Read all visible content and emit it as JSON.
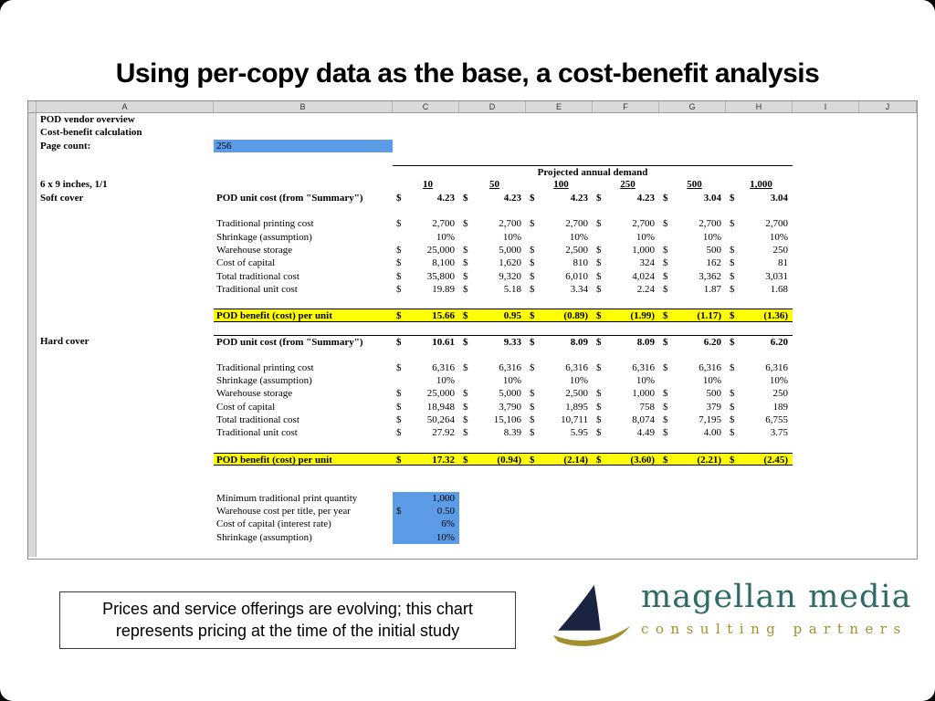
{
  "slide": {
    "title": "Using per-copy data as the base, a cost-benefit analysis",
    "note": "Prices and service offerings are evolving; this chart represents pricing at the time of the initial study"
  },
  "logo": {
    "name": "magellan media",
    "subtitle": "consulting partners",
    "colors": {
      "navy": "#1a2440",
      "gold": "#a38e2d",
      "teal": "#2e6b66"
    }
  },
  "spreadsheet": {
    "colors": {
      "input_blue": "#5c9ce6",
      "highlight_yellow": "#ffff00",
      "header_gray": "#d9d9d9"
    },
    "column_letters": [
      "A",
      "B",
      "C",
      "D",
      "E",
      "F",
      "G",
      "H",
      "I",
      "J"
    ],
    "rows": [
      {
        "type": "label",
        "a": "POD vendor overview",
        "aBold": true
      },
      {
        "type": "label",
        "a": "Cost-benefit calculation",
        "aBold": true
      },
      {
        "type": "label",
        "a": "Page count:",
        "aBold": true,
        "b": "256",
        "bBg": "blue"
      },
      {
        "type": "blank"
      },
      {
        "type": "span",
        "text": "Projected annual demand",
        "ruleTop": true
      },
      {
        "type": "headers",
        "a": "6 x 9 inches, 1/1",
        "aBold": true,
        "vals": [
          "10",
          "50",
          "100",
          "250",
          "500",
          "1,000"
        ]
      },
      {
        "type": "data",
        "a": "Soft cover",
        "aBold": true,
        "b": "POD unit cost (from \"Summary\")",
        "bBold": true,
        "fmt": "usd",
        "vBold": true,
        "vals": [
          "4.23",
          "4.23",
          "4.23",
          "4.23",
          "3.04",
          "3.04"
        ]
      },
      {
        "type": "blank"
      },
      {
        "type": "data",
        "b": "Traditional printing cost",
        "fmt": "usd",
        "vals": [
          "2,700",
          "2,700",
          "2,700",
          "2,700",
          "2,700",
          "2,700"
        ]
      },
      {
        "type": "data",
        "b": "Shrinkage (assumption)",
        "fmt": "pct",
        "vals": [
          "10%",
          "10%",
          "10%",
          "10%",
          "10%",
          "10%"
        ]
      },
      {
        "type": "data",
        "b": "Warehouse storage",
        "fmt": "usd",
        "vals": [
          "25,000",
          "5,000",
          "2,500",
          "1,000",
          "500",
          "250"
        ]
      },
      {
        "type": "data",
        "b": "Cost of capital",
        "fmt": "usd",
        "vals": [
          "8,100",
          "1,620",
          "810",
          "324",
          "162",
          "81"
        ]
      },
      {
        "type": "data",
        "b": "Total traditional cost",
        "fmt": "usd",
        "vals": [
          "35,800",
          "9,320",
          "6,010",
          "4,024",
          "3,362",
          "3,031"
        ]
      },
      {
        "type": "data",
        "b": "Traditional unit cost",
        "fmt": "usd",
        "vals": [
          "19.89",
          "5.18",
          "3.34",
          "2.24",
          "1.87",
          "1.68"
        ]
      },
      {
        "type": "blank"
      },
      {
        "type": "data",
        "b": "POD benefit (cost) per unit",
        "bBold": true,
        "fmt": "usd",
        "vBold": true,
        "yellow": true,
        "vals": [
          "15.66",
          "0.95",
          "(0.89)",
          "(1.99)",
          "(1.17)",
          "(1.36)"
        ]
      },
      {
        "type": "blank"
      },
      {
        "type": "data",
        "a": "Hard cover",
        "aBold": true,
        "b": "POD unit cost (from \"Summary\")",
        "bBold": true,
        "fmt": "usd",
        "vBold": true,
        "ruleTop": true,
        "vals": [
          "10.61",
          "9.33",
          "8.09",
          "8.09",
          "6.20",
          "6.20"
        ]
      },
      {
        "type": "blank"
      },
      {
        "type": "data",
        "b": "Traditional printing cost",
        "fmt": "usd",
        "vals": [
          "6,316",
          "6,316",
          "6,316",
          "6,316",
          "6,316",
          "6,316"
        ]
      },
      {
        "type": "data",
        "b": "Shrinkage (assumption)",
        "fmt": "pct",
        "vals": [
          "10%",
          "10%",
          "10%",
          "10%",
          "10%",
          "10%"
        ]
      },
      {
        "type": "data",
        "b": "Warehouse storage",
        "fmt": "usd",
        "vals": [
          "25,000",
          "5,000",
          "2,500",
          "1,000",
          "500",
          "250"
        ]
      },
      {
        "type": "data",
        "b": "Cost of capital",
        "fmt": "usd",
        "vals": [
          "18,948",
          "3,790",
          "1,895",
          "758",
          "379",
          "189"
        ]
      },
      {
        "type": "data",
        "b": "Total traditional cost",
        "fmt": "usd",
        "vals": [
          "50,264",
          "15,106",
          "10,711",
          "8,074",
          "7,195",
          "6,755"
        ]
      },
      {
        "type": "data",
        "b": "Traditional unit cost",
        "fmt": "usd",
        "vals": [
          "27.92",
          "8.39",
          "5.95",
          "4.49",
          "4.00",
          "3.75"
        ]
      },
      {
        "type": "blank"
      },
      {
        "type": "data",
        "b": "POD benefit (cost) per unit",
        "bBold": true,
        "fmt": "usd",
        "vBold": true,
        "yellow": true,
        "vals": [
          "17.32",
          "(0.94)",
          "(2.14)",
          "(3.60)",
          "(2.21)",
          "(2.45)"
        ]
      },
      {
        "type": "blank"
      },
      {
        "type": "blank"
      },
      {
        "type": "assumption",
        "b": "Minimum traditional print quantity",
        "fmt": "plain",
        "val": "1,000"
      },
      {
        "type": "assumption",
        "b": "Warehouse cost per title, per year",
        "fmt": "usd",
        "val": "0.50"
      },
      {
        "type": "assumption",
        "b": "Cost of capital (interest rate)",
        "fmt": "plain",
        "val": "6%"
      },
      {
        "type": "assumption",
        "b": "Shrinkage (assumption)",
        "fmt": "plain",
        "val": "10%"
      },
      {
        "type": "blank"
      }
    ]
  }
}
